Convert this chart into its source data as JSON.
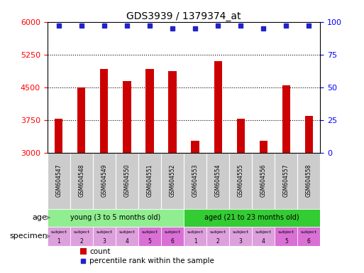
{
  "title": "GDS3939 / 1379374_at",
  "samples": [
    "GSM604547",
    "GSM604548",
    "GSM604549",
    "GSM604550",
    "GSM604551",
    "GSM604552",
    "GSM604553",
    "GSM604554",
    "GSM604555",
    "GSM604556",
    "GSM604557",
    "GSM604558"
  ],
  "counts": [
    3780,
    4500,
    4920,
    4650,
    4920,
    4870,
    3270,
    5100,
    3780,
    3270,
    4550,
    3850
  ],
  "percentiles": [
    97,
    97,
    97,
    97,
    97,
    95,
    95,
    97,
    97,
    95,
    97,
    97
  ],
  "ylim_left": [
    3000,
    6000
  ],
  "ylim_right": [
    0,
    100
  ],
  "yticks_left": [
    3000,
    3750,
    4500,
    5250,
    6000
  ],
  "yticks_right": [
    0,
    25,
    50,
    75,
    100
  ],
  "bar_color": "#cc0000",
  "dot_color": "#2222cc",
  "age_groups": [
    {
      "label": "young (3 to 5 months old)",
      "start": 0,
      "end": 6,
      "color": "#90EE90"
    },
    {
      "label": "aged (21 to 23 months old)",
      "start": 6,
      "end": 12,
      "color": "#33CC33"
    }
  ],
  "specimen_colors": [
    "#DDA0DD",
    "#DDA0DD",
    "#DDA0DD",
    "#DDA0DD",
    "#DA70D6",
    "#DA70D6",
    "#DDA0DD",
    "#DDA0DD",
    "#DDA0DD",
    "#DDA0DD",
    "#DA70D6",
    "#DA70D6"
  ],
  "specimen_numbers": [
    "1",
    "2",
    "3",
    "4",
    "5",
    "6",
    "1",
    "2",
    "3",
    "4",
    "5",
    "6"
  ],
  "age_label": "age",
  "specimen_label": "specimen",
  "legend_count_color": "#cc0000",
  "legend_dot_color": "#2222cc",
  "background_color": "#ffffff",
  "tick_bg_color": "#cccccc",
  "bar_width": 0.35
}
